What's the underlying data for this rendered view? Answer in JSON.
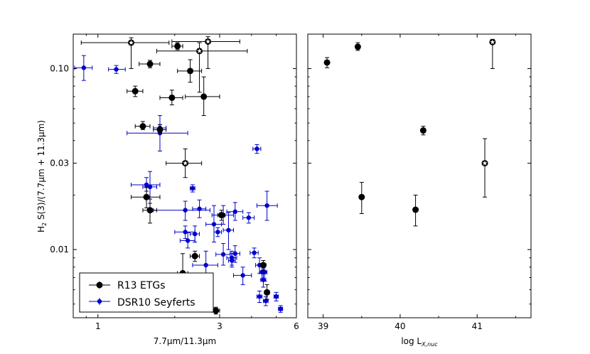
{
  "chart_data": [
    {
      "type": "scatter",
      "panel": "left",
      "xlabel": "7.7μm/11.3μm",
      "ylabel": "H2 S(3)/(7.7μm + 11.3μm)",
      "xscale": "log",
      "yscale": "log",
      "xlim": [
        0.8,
        6.0
      ],
      "ylim": [
        0.0042,
        0.155
      ],
      "xticks": [
        {
          "value": 1,
          "label": "1"
        },
        {
          "value": 3,
          "label": "3"
        },
        {
          "value": 6,
          "label": "6"
        }
      ],
      "yticks": [
        {
          "value": 0.01,
          "label": "0.01"
        },
        {
          "value": 0.03,
          "label": "0.03"
        },
        {
          "value": 0.1,
          "label": "0.10"
        }
      ],
      "legend": {
        "position": "bottom-left",
        "entries": [
          {
            "label": "R13 ETGs",
            "color": "#000000"
          },
          {
            "label": "DSR10 Seyferts",
            "color": "#0000cc"
          }
        ]
      },
      "series": [
        {
          "name": "R13 ETGs",
          "color": "#000000",
          "points": [
            {
              "x": 1.35,
              "y": 0.139,
              "xlo": 0.86,
              "xhi": 1.9,
              "ylo": 0.1,
              "yhi": 0.148,
              "marker": "star"
            },
            {
              "x": 2.05,
              "y": 0.133,
              "xlo": 1.95,
              "xhi": 2.15,
              "ylo": 0.127,
              "yhi": 0.139
            },
            {
              "x": 2.7,
              "y": 0.141,
              "xlo": 1.95,
              "xhi": 3.6,
              "ylo": 0.1,
              "yhi": 0.15,
              "marker": "star"
            },
            {
              "x": 2.5,
              "y": 0.125,
              "xlo": 1.7,
              "xhi": 3.85,
              "ylo": 0.074,
              "yhi": 0.139,
              "marker": "star"
            },
            {
              "x": 1.6,
              "y": 0.106,
              "xlo": 1.45,
              "xhi": 1.75,
              "ylo": 0.101,
              "yhi": 0.111
            },
            {
              "x": 2.3,
              "y": 0.097,
              "xlo": 2.05,
              "xhi": 2.55,
              "ylo": 0.084,
              "yhi": 0.112
            },
            {
              "x": 1.4,
              "y": 0.075,
              "xlo": 1.3,
              "xhi": 1.5,
              "ylo": 0.07,
              "yhi": 0.08
            },
            {
              "x": 1.95,
              "y": 0.069,
              "xlo": 1.75,
              "xhi": 2.15,
              "ylo": 0.063,
              "yhi": 0.076
            },
            {
              "x": 2.6,
              "y": 0.07,
              "xlo": 2.2,
              "xhi": 3.0,
              "ylo": 0.055,
              "yhi": 0.09
            },
            {
              "x": 1.5,
              "y": 0.048,
              "xlo": 1.4,
              "xhi": 1.6,
              "ylo": 0.046,
              "yhi": 0.051
            },
            {
              "x": 1.75,
              "y": 0.046,
              "xlo": 1.65,
              "xhi": 1.85,
              "ylo": 0.044,
              "yhi": 0.049
            },
            {
              "x": 2.2,
              "y": 0.03,
              "xlo": 1.85,
              "xhi": 2.55,
              "ylo": 0.025,
              "yhi": 0.036,
              "marker": "star"
            },
            {
              "x": 1.55,
              "y": 0.0195,
              "xlo": 1.35,
              "xhi": 1.75,
              "ylo": 0.017,
              "yhi": 0.022
            },
            {
              "x": 1.6,
              "y": 0.0165,
              "xlo": 1.5,
              "xhi": 1.7,
              "ylo": 0.014,
              "yhi": 0.019
            },
            {
              "x": 3.05,
              "y": 0.0155,
              "xlo": 2.95,
              "xhi": 3.15,
              "ylo": 0.0145,
              "yhi": 0.0165
            },
            {
              "x": 2.4,
              "y": 0.0092,
              "xlo": 2.3,
              "xhi": 2.5,
              "ylo": 0.0086,
              "yhi": 0.0098
            },
            {
              "x": 2.15,
              "y": 0.0074,
              "xlo": 2.05,
              "xhi": 2.25,
              "ylo": 0.0066,
              "yhi": 0.0095
            },
            {
              "x": 4.45,
              "y": 0.0082,
              "xlo": 4.35,
              "xhi": 4.55,
              "ylo": 0.0077,
              "yhi": 0.0087
            },
            {
              "x": 4.6,
              "y": 0.0058,
              "xlo": 4.5,
              "xhi": 4.7,
              "ylo": 0.0053,
              "yhi": 0.0064
            },
            {
              "x": 2.9,
              "y": 0.0046,
              "xlo": 2.8,
              "xhi": 3.0,
              "ylo": 0.0044,
              "yhi": 0.0048
            }
          ]
        },
        {
          "name": "DSR10 Seyferts",
          "color": "#0000cc",
          "points": [
            {
              "x": 0.88,
              "y": 0.101,
              "xlo": 0.81,
              "xhi": 0.95,
              "ylo": 0.086,
              "yhi": 0.118
            },
            {
              "x": 1.18,
              "y": 0.099,
              "xlo": 1.1,
              "xhi": 1.28,
              "ylo": 0.094,
              "yhi": 0.104
            },
            {
              "x": 1.75,
              "y": 0.044,
              "xlo": 1.3,
              "xhi": 2.25,
              "ylo": 0.035,
              "yhi": 0.055
            },
            {
              "x": 1.75,
              "y": 0.047,
              "xlo": 1.65,
              "xhi": 1.85,
              "ylo": 0.045,
              "yhi": 0.049
            },
            {
              "x": 1.55,
              "y": 0.0228,
              "xlo": 1.35,
              "xhi": 1.75,
              "ylo": 0.021,
              "yhi": 0.025
            },
            {
              "x": 1.6,
              "y": 0.0222,
              "xlo": 1.5,
              "xhi": 1.7,
              "ylo": 0.018,
              "yhi": 0.027
            },
            {
              "x": 4.2,
              "y": 0.036,
              "xlo": 4.05,
              "xhi": 4.35,
              "ylo": 0.034,
              "yhi": 0.038
            },
            {
              "x": 2.35,
              "y": 0.0218,
              "xlo": 2.3,
              "xhi": 2.4,
              "ylo": 0.0208,
              "yhi": 0.0228
            },
            {
              "x": 2.2,
              "y": 0.0165,
              "xlo": 1.65,
              "xhi": 2.75,
              "ylo": 0.0145,
              "yhi": 0.0185
            },
            {
              "x": 2.5,
              "y": 0.0168,
              "xlo": 2.35,
              "xhi": 2.65,
              "ylo": 0.015,
              "yhi": 0.0188
            },
            {
              "x": 3.1,
              "y": 0.0155,
              "xlo": 2.8,
              "xhi": 3.4,
              "ylo": 0.0138,
              "yhi": 0.0175
            },
            {
              "x": 3.45,
              "y": 0.0162,
              "xlo": 3.2,
              "xhi": 3.7,
              "ylo": 0.0145,
              "yhi": 0.0182
            },
            {
              "x": 3.9,
              "y": 0.015,
              "xlo": 3.7,
              "xhi": 4.1,
              "ylo": 0.014,
              "yhi": 0.016
            },
            {
              "x": 4.6,
              "y": 0.0175,
              "xlo": 4.2,
              "xhi": 5.05,
              "ylo": 0.0145,
              "yhi": 0.021
            },
            {
              "x": 2.2,
              "y": 0.0125,
              "xlo": 2.0,
              "xhi": 2.4,
              "ylo": 0.0115,
              "yhi": 0.0135
            },
            {
              "x": 2.4,
              "y": 0.0122,
              "xlo": 2.3,
              "xhi": 2.5,
              "ylo": 0.011,
              "yhi": 0.0135
            },
            {
              "x": 2.85,
              "y": 0.0138,
              "xlo": 2.65,
              "xhi": 3.05,
              "ylo": 0.011,
              "yhi": 0.0175
            },
            {
              "x": 2.25,
              "y": 0.0112,
              "xlo": 2.1,
              "xhi": 2.4,
              "ylo": 0.0102,
              "yhi": 0.0124
            },
            {
              "x": 2.95,
              "y": 0.0125,
              "xlo": 2.85,
              "xhi": 3.05,
              "ylo": 0.0118,
              "yhi": 0.0132
            },
            {
              "x": 3.25,
              "y": 0.0128,
              "xlo": 3.1,
              "xhi": 3.4,
              "ylo": 0.01,
              "yhi": 0.016
            },
            {
              "x": 3.45,
              "y": 0.0095,
              "xlo": 3.3,
              "xhi": 3.6,
              "ylo": 0.0085,
              "yhi": 0.0105
            },
            {
              "x": 3.1,
              "y": 0.0094,
              "xlo": 2.9,
              "xhi": 3.3,
              "ylo": 0.0082,
              "yhi": 0.0108
            },
            {
              "x": 2.65,
              "y": 0.0082,
              "xlo": 2.35,
              "xhi": 2.95,
              "ylo": 0.007,
              "yhi": 0.0098
            },
            {
              "x": 3.35,
              "y": 0.009,
              "xlo": 3.2,
              "xhi": 3.5,
              "ylo": 0.0082,
              "yhi": 0.0098
            },
            {
              "x": 3.35,
              "y": 0.0087,
              "xlo": 3.25,
              "xhi": 3.45,
              "ylo": 0.008,
              "yhi": 0.0095
            },
            {
              "x": 4.1,
              "y": 0.0096,
              "xlo": 3.95,
              "xhi": 4.25,
              "ylo": 0.009,
              "yhi": 0.0102
            },
            {
              "x": 3.7,
              "y": 0.0072,
              "xlo": 3.4,
              "xhi": 4.0,
              "ylo": 0.0064,
              "yhi": 0.008
            },
            {
              "x": 4.3,
              "y": 0.0082,
              "xlo": 4.15,
              "xhi": 4.45,
              "ylo": 0.0074,
              "yhi": 0.009
            },
            {
              "x": 4.4,
              "y": 0.0075,
              "xlo": 4.3,
              "xhi": 4.5,
              "ylo": 0.0068,
              "yhi": 0.0083
            },
            {
              "x": 4.5,
              "y": 0.0075,
              "xlo": 4.4,
              "xhi": 4.6,
              "ylo": 0.0067,
              "yhi": 0.0083
            },
            {
              "x": 4.45,
              "y": 0.0068,
              "xlo": 4.35,
              "xhi": 4.55,
              "ylo": 0.0062,
              "yhi": 0.0076
            },
            {
              "x": 4.3,
              "y": 0.0055,
              "xlo": 4.2,
              "xhi": 4.4,
              "ylo": 0.0051,
              "yhi": 0.0059
            },
            {
              "x": 4.55,
              "y": 0.0052,
              "xlo": 4.45,
              "xhi": 4.65,
              "ylo": 0.0049,
              "yhi": 0.0055
            },
            {
              "x": 5.0,
              "y": 0.0055,
              "xlo": 4.9,
              "xhi": 5.1,
              "ylo": 0.0052,
              "yhi": 0.0058
            },
            {
              "x": 5.2,
              "y": 0.0047,
              "xlo": 5.1,
              "xhi": 5.3,
              "ylo": 0.0045,
              "yhi": 0.0049
            }
          ]
        }
      ]
    },
    {
      "type": "scatter",
      "panel": "right",
      "xlabel_main": "log L",
      "xlabel_sub": "X,nuc",
      "xscale": "linear",
      "yscale": "log",
      "xlim": [
        38.8,
        41.7
      ],
      "ylim": [
        0.0042,
        0.155
      ],
      "xticks": [
        {
          "value": 39,
          "label": "39"
        },
        {
          "value": 40,
          "label": "40"
        },
        {
          "value": 41,
          "label": "41"
        }
      ],
      "series": [
        {
          "name": "R13 ETGs",
          "color": "#000000",
          "points": [
            {
              "x": 39.05,
              "y": 0.108,
              "ylo": 0.101,
              "yhi": 0.115
            },
            {
              "x": 39.45,
              "y": 0.132,
              "ylo": 0.126,
              "yhi": 0.139
            },
            {
              "x": 39.5,
              "y": 0.0195,
              "ylo": 0.0158,
              "yhi": 0.0235
            },
            {
              "x": 40.2,
              "y": 0.0166,
              "ylo": 0.0135,
              "yhi": 0.02
            },
            {
              "x": 40.3,
              "y": 0.0455,
              "ylo": 0.043,
              "yhi": 0.048
            },
            {
              "x": 41.1,
              "y": 0.03,
              "ylo": 0.0195,
              "yhi": 0.041,
              "marker": "star"
            },
            {
              "x": 41.2,
              "y": 0.14,
              "ylo": 0.1,
              "yhi": 0.145,
              "marker": "star"
            }
          ]
        }
      ]
    }
  ]
}
